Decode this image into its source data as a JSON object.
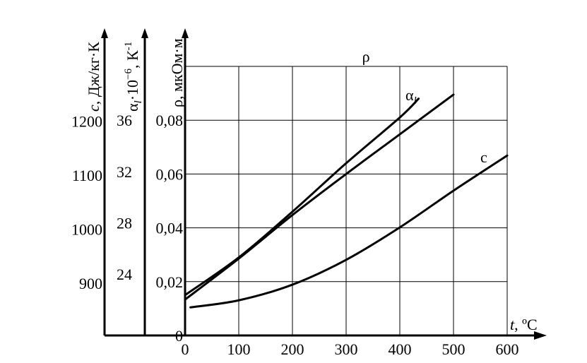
{
  "chart_data": {
    "type": "line",
    "x_axis": {
      "label_var": "t",
      "label_unit": ", ºC",
      "ticks": [
        0,
        100,
        200,
        300,
        400,
        500,
        600
      ],
      "range": [
        0,
        600
      ]
    },
    "y_axes": [
      {
        "id": "rho",
        "label_var": "ρ",
        "label_unit": ", мкОм·м",
        "ticks": [
          0,
          0.02,
          0.04,
          0.06,
          0.08
        ],
        "tick_labels": [
          "0",
          "0,02",
          "0,04",
          "0,06",
          "0,08"
        ],
        "range": [
          0,
          0.1
        ]
      },
      {
        "id": "alpha",
        "label_var": "α",
        "label_sub": "l",
        "label_mid": "·10",
        "label_sup": "−6",
        "label_unit": ", К",
        "label_unit_sup": "-1",
        "ticks": [
          24,
          28,
          32,
          36
        ],
        "tick_labels": [
          "24",
          "28",
          "32",
          "36"
        ],
        "range": [
          19.2,
          40.2
        ]
      },
      {
        "id": "c",
        "label_var": "c",
        "label_unit": ", Дж/кг·К",
        "ticks": [
          900,
          1000,
          1100,
          1200
        ],
        "tick_labels": [
          "900",
          "1000",
          "1100",
          "1200"
        ],
        "range": [
          803,
          1301
        ]
      }
    ],
    "grid": true,
    "series": [
      {
        "name": "ρ",
        "axis": "rho",
        "x": [
          0,
          100,
          200,
          300,
          400,
          435
        ],
        "y": [
          0.015,
          0.029,
          0.046,
          0.064,
          0.081,
          0.088
        ]
      },
      {
        "name": "α",
        "name_sub": "l",
        "axis": "alpha",
        "x": [
          0,
          100,
          200,
          300,
          400,
          500
        ],
        "y": [
          22.0,
          25.2,
          28.6,
          31.8,
          34.9,
          38.0
        ]
      },
      {
        "name": "c",
        "axis": "c",
        "x": [
          10,
          100,
          200,
          300,
          400,
          500,
          600
        ],
        "y": [
          855,
          868,
          897,
          943,
          1003,
          1071,
          1136
        ]
      }
    ]
  }
}
